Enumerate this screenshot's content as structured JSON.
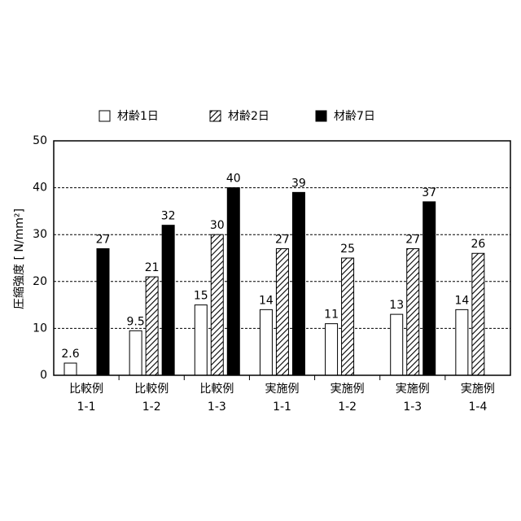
{
  "chart_data": {
    "type": "bar",
    "y_label": "圧縮強度 [ N/mm²]",
    "categories": [
      [
        "比較例",
        "1-1"
      ],
      [
        "比較例",
        "1-2"
      ],
      [
        "比較例",
        "1-3"
      ],
      [
        "実施例",
        "1-1"
      ],
      [
        "実施例",
        "1-2"
      ],
      [
        "実施例",
        "1-3"
      ],
      [
        "実施例",
        "1-4"
      ]
    ],
    "series": [
      {
        "name": "材齢1日",
        "color": "#ffffff",
        "pattern": "solid",
        "values": [
          2.6,
          9.5,
          15,
          14,
          11,
          13,
          14
        ]
      },
      {
        "name": "材齢2日",
        "color": "#000000",
        "pattern": "diagonal",
        "values": [
          null,
          21,
          30,
          27,
          25,
          27,
          26
        ]
      },
      {
        "name": "材齢7日",
        "color": "#000000",
        "pattern": "solid",
        "values": [
          27,
          32,
          40,
          39,
          null,
          37,
          null
        ]
      }
    ],
    "ylim": [
      0,
      50
    ],
    "yticks": [
      0,
      10,
      20,
      30,
      40,
      50
    ],
    "grid": true,
    "legend": "top"
  }
}
